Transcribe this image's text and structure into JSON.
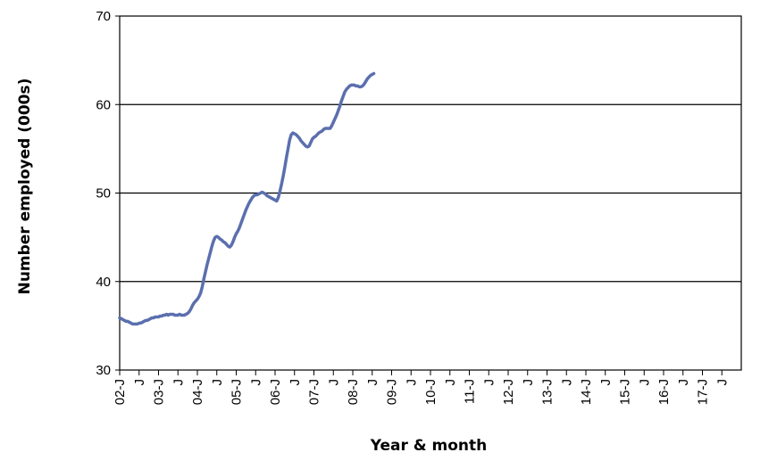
{
  "chart_data": {
    "type": "line",
    "title": "",
    "xlabel": "Year & month",
    "ylabel": "Number employed (000s)",
    "ylim": [
      30,
      70
    ],
    "yticks": [
      30,
      40,
      50,
      60,
      70
    ],
    "grid": "horizontal major lines",
    "legend": "none",
    "line_color": "#5b6fae",
    "x_tick_labels": [
      "02-J",
      "J",
      "03-J",
      "J",
      "04-J",
      "J",
      "05-J",
      "J",
      "06-J",
      "J",
      "07-J",
      "J",
      "08-J",
      "J",
      "09-J",
      "J",
      "10-J",
      "J",
      "11-J",
      "J",
      "12-J",
      "J",
      "13-J",
      "J",
      "14-J",
      "J",
      "15-J",
      "J",
      "16-J",
      "J",
      "17-J",
      "J"
    ],
    "x_start": "2002-01",
    "series": [
      {
        "values": [
          35.9,
          35.8,
          35.7,
          35.6,
          35.5,
          35.5,
          35.4,
          35.3,
          35.2,
          35.2,
          35.2,
          35.2,
          35.3,
          35.3,
          35.4,
          35.5,
          35.6,
          35.6,
          35.7,
          35.8,
          35.9,
          35.9,
          36.0,
          36.0,
          36.0,
          36.1,
          36.1,
          36.2,
          36.2,
          36.3,
          36.2,
          36.3,
          36.3,
          36.3,
          36.2,
          36.2,
          36.2,
          36.3,
          36.2,
          36.2,
          36.2,
          36.3,
          36.4,
          36.6,
          36.9,
          37.3,
          37.6,
          37.8,
          38.0,
          38.3,
          38.7,
          39.4,
          40.3,
          41.1,
          41.9,
          42.6,
          43.3,
          44.0,
          44.6,
          45.0,
          45.1,
          45.0,
          44.8,
          44.7,
          44.5,
          44.4,
          44.2,
          44.0,
          43.9,
          44.1,
          44.5,
          45.0,
          45.4,
          45.7,
          46.1,
          46.6,
          47.1,
          47.6,
          48.1,
          48.5,
          48.9,
          49.2,
          49.5,
          49.7,
          49.8,
          49.8,
          49.9,
          50.0,
          50.1,
          50.0,
          49.9,
          49.7,
          49.6,
          49.5,
          49.4,
          49.3,
          49.2,
          49.1,
          49.5,
          50.2,
          51.0,
          51.9,
          52.9,
          54.0,
          55.0,
          56.0,
          56.6,
          56.8,
          56.7,
          56.6,
          56.4,
          56.2,
          55.9,
          55.7,
          55.5,
          55.3,
          55.2,
          55.3,
          55.7,
          56.1,
          56.3,
          56.4,
          56.6,
          56.8,
          56.9,
          57.0,
          57.2,
          57.3,
          57.3,
          57.3,
          57.3,
          57.6,
          58.0,
          58.4,
          58.8,
          59.3,
          59.8,
          60.4,
          60.9,
          61.4,
          61.7,
          61.9,
          62.1,
          62.2,
          62.2,
          62.2,
          62.1,
          62.1,
          62.0,
          62.0,
          62.1,
          62.3,
          62.6,
          62.9,
          63.1,
          63.3,
          63.4,
          63.5
        ]
      }
    ]
  }
}
